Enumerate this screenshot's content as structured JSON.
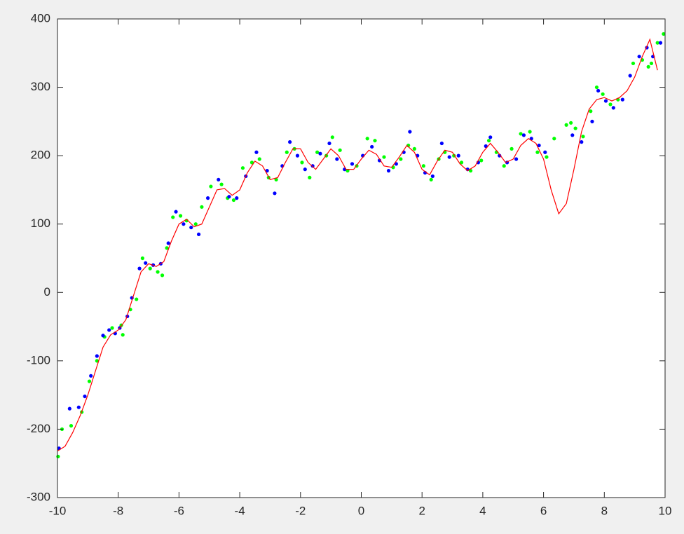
{
  "chart_data": {
    "type": "scatter",
    "xlim": [
      -10,
      10
    ],
    "ylim": [
      -300,
      400
    ],
    "xticks": [
      -10,
      -8,
      -6,
      -4,
      -2,
      0,
      2,
      4,
      6,
      8,
      10
    ],
    "yticks": [
      -300,
      -200,
      -100,
      0,
      100,
      200,
      300,
      400
    ],
    "grid": false,
    "series": [
      {
        "style": "markers",
        "color": "#00ff00",
        "x": [
          -9.98,
          -9.85,
          -9.55,
          -9.2,
          -8.95,
          -8.7,
          -8.45,
          -8.2,
          -7.9,
          -7.85,
          -7.6,
          -7.4,
          -7.2,
          -6.95,
          -6.7,
          -6.55,
          -6.4,
          -6.2,
          -5.95,
          -5.75,
          -5.45,
          -5.25,
          -4.95,
          -4.6,
          -4.4,
          -4.2,
          -3.9,
          -3.6,
          -3.35,
          -3.05,
          -2.8,
          -2.45,
          -2.2,
          -1.95,
          -1.7,
          -1.45,
          -1.15,
          -0.95,
          -0.7,
          -0.45,
          -0.15,
          0.2,
          0.45,
          0.75,
          1.05,
          1.3,
          1.55,
          1.75,
          2.05,
          2.3,
          2.55,
          2.75,
          3.05,
          3.3,
          3.6,
          3.95,
          4.2,
          4.45,
          4.7,
          4.95,
          5.25,
          5.55,
          5.8,
          6.1,
          6.35,
          6.75,
          6.9,
          7.05,
          7.3,
          7.55,
          7.75,
          7.95,
          8.2,
          8.45,
          8.95,
          9.25,
          9.45,
          9.55,
          9.75,
          9.95
        ],
        "values": [
          -240,
          -200,
          -195,
          -175,
          -130,
          -100,
          -65,
          -52,
          -48,
          -62,
          -25,
          -10,
          50,
          35,
          30,
          25,
          65,
          110,
          112,
          105,
          100,
          125,
          155,
          158,
          138,
          135,
          182,
          190,
          195,
          168,
          165,
          205,
          210,
          190,
          168,
          205,
          200,
          227,
          208,
          178,
          185,
          225,
          222,
          198,
          183,
          195,
          215,
          210,
          185,
          165,
          195,
          205,
          200,
          190,
          178,
          193,
          222,
          205,
          185,
          210,
          232,
          235,
          205,
          198,
          225,
          245,
          248,
          240,
          228,
          265,
          300,
          290,
          275,
          282,
          335,
          340,
          330,
          335,
          365,
          378
        ]
      },
      {
        "style": "markers",
        "color": "#0000ff",
        "x": [
          -9.95,
          -9.6,
          -9.3,
          -9.1,
          -8.9,
          -8.7,
          -8.5,
          -8.3,
          -8.1,
          -7.95,
          -7.7,
          -7.55,
          -7.3,
          -7.1,
          -6.85,
          -6.6,
          -6.35,
          -6.1,
          -5.85,
          -5.6,
          -5.35,
          -5.05,
          -4.7,
          -4.35,
          -4.1,
          -3.8,
          -3.45,
          -3.1,
          -2.85,
          -2.6,
          -2.35,
          -2.1,
          -1.85,
          -1.6,
          -1.35,
          -1.05,
          -0.8,
          -0.55,
          -0.3,
          0.05,
          0.35,
          0.6,
          0.9,
          1.15,
          1.4,
          1.6,
          1.85,
          2.1,
          2.35,
          2.65,
          2.9,
          3.2,
          3.5,
          3.85,
          4.1,
          4.25,
          4.55,
          4.8,
          5.1,
          5.35,
          5.6,
          5.85,
          6.05,
          6.95,
          7.25,
          7.6,
          7.8,
          8.05,
          8.3,
          8.6,
          8.85,
          9.15,
          9.4,
          9.6,
          9.85
        ],
        "values": [
          -228,
          -170,
          -168,
          -152,
          -122,
          -93,
          -63,
          -55,
          -60,
          -52,
          -35,
          -8,
          35,
          43,
          40,
          42,
          72,
          118,
          100,
          95,
          85,
          138,
          165,
          140,
          138,
          170,
          205,
          178,
          145,
          185,
          220,
          200,
          180,
          185,
          203,
          218,
          195,
          180,
          188,
          200,
          213,
          193,
          178,
          188,
          205,
          235,
          200,
          175,
          170,
          218,
          198,
          200,
          180,
          190,
          214,
          227,
          200,
          190,
          195,
          230,
          225,
          215,
          205,
          230,
          220,
          250,
          295,
          280,
          270,
          282,
          317,
          345,
          358,
          345,
          365
        ]
      },
      {
        "style": "line",
        "color": "#ff0000",
        "x": [
          -10,
          -9.75,
          -9.5,
          -9.25,
          -9,
          -8.75,
          -8.5,
          -8.25,
          -8,
          -7.75,
          -7.5,
          -7.25,
          -7,
          -6.75,
          -6.5,
          -6.25,
          -6,
          -5.75,
          -5.5,
          -5.25,
          -5,
          -4.75,
          -4.5,
          -4.25,
          -4,
          -3.75,
          -3.5,
          -3.25,
          -3,
          -2.75,
          -2.5,
          -2.25,
          -2,
          -1.75,
          -1.5,
          -1.25,
          -1,
          -0.75,
          -0.5,
          -0.25,
          0,
          0.25,
          0.5,
          0.75,
          1,
          1.25,
          1.5,
          1.75,
          2,
          2.25,
          2.5,
          2.75,
          3,
          3.25,
          3.5,
          3.75,
          4,
          4.25,
          4.5,
          4.75,
          5,
          5.25,
          5.5,
          5.75,
          6,
          6.25,
          6.5,
          6.75,
          7,
          7.25,
          7.5,
          7.75,
          8,
          8.25,
          8.5,
          8.75,
          9,
          9.25,
          9.5,
          9.75
        ],
        "values": [
          -232,
          -225,
          -205,
          -180,
          -150,
          -115,
          -80,
          -62,
          -55,
          -40,
          -5,
          30,
          42,
          38,
          45,
          75,
          100,
          107,
          96,
          100,
          125,
          150,
          152,
          142,
          150,
          175,
          192,
          185,
          165,
          168,
          190,
          210,
          210,
          190,
          180,
          195,
          210,
          200,
          180,
          180,
          195,
          208,
          202,
          185,
          183,
          198,
          215,
          205,
          180,
          172,
          192,
          208,
          205,
          188,
          178,
          185,
          205,
          218,
          205,
          190,
          195,
          215,
          225,
          218,
          195,
          150,
          115,
          130,
          180,
          235,
          268,
          282,
          285,
          280,
          285,
          295,
          315,
          345,
          370,
          325
        ]
      }
    ]
  }
}
